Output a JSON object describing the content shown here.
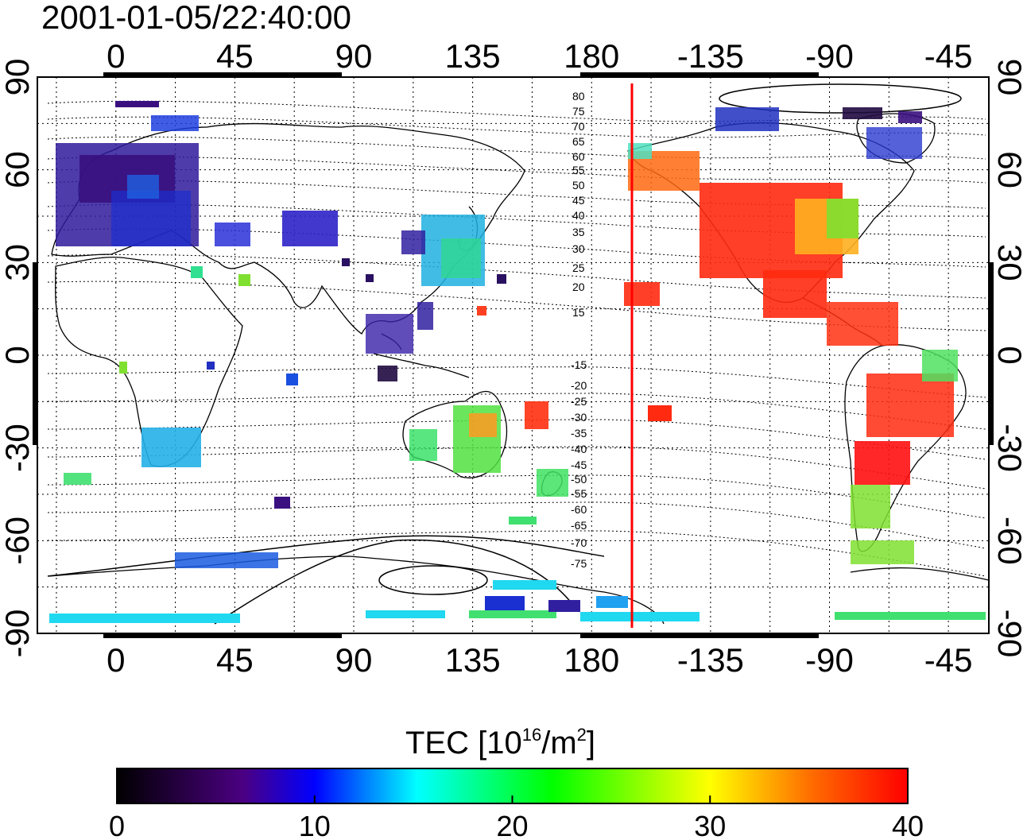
{
  "title": "2001-01-05/22:40:00",
  "map": {
    "lon_ticks_top": [
      "0",
      "45",
      "90",
      "135",
      "180",
      "-135",
      "-90",
      "-45"
    ],
    "lon_ticks_bottom": [
      "0",
      "45",
      "90",
      "135",
      "180",
      "-135",
      "-90",
      "-45"
    ],
    "lat_ticks_left": [
      "90",
      "60",
      "30",
      "0",
      "-30",
      "-60",
      "-90"
    ],
    "lat_ticks_right": [
      "90",
      "60",
      "30",
      "0",
      "-30",
      "-60",
      "-90"
    ],
    "contour_labels_north": [
      "80",
      "75",
      "70",
      "65",
      "60",
      "55",
      "50",
      "45",
      "40",
      "35",
      "30",
      "25",
      "20",
      "15"
    ],
    "contour_labels_south": [
      "-15",
      "-20",
      "-25",
      "-30",
      "-35",
      "-40",
      "-45",
      "-50",
      "-55",
      "-60",
      "-65",
      "-70",
      "-75"
    ],
    "terminator_color": "#ff0000",
    "gridline_style": "dotted",
    "grid": true
  },
  "colorbar": {
    "label_main": "TEC  [10",
    "label_sup1": "16",
    "label_mid": "/m",
    "label_sup2": "2",
    "label_end": "]",
    "ticks": [
      "0",
      "10",
      "20",
      "30",
      "40"
    ],
    "min": 0,
    "max": 40,
    "colormap": [
      "#000000",
      "#4b0082",
      "#0000ff",
      "#00ffff",
      "#00ff00",
      "#ffff00",
      "#ff0000"
    ]
  }
}
